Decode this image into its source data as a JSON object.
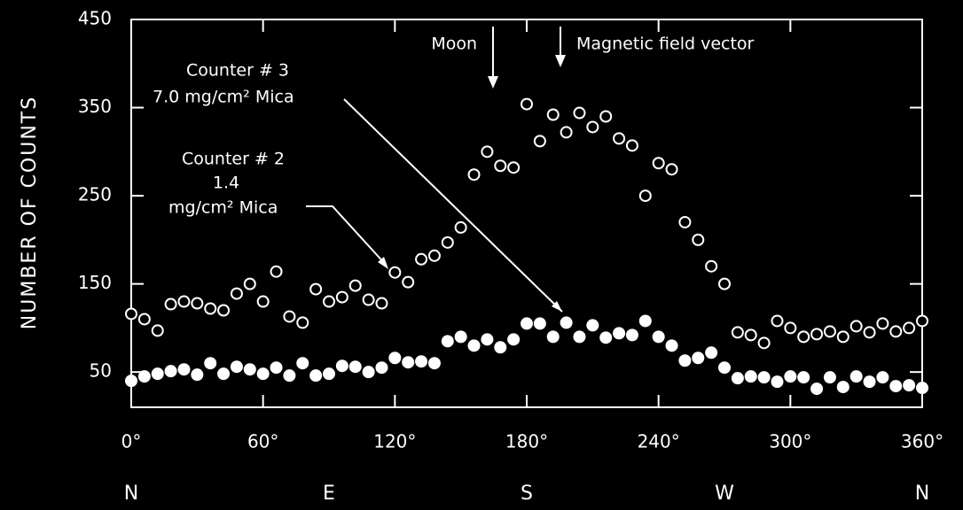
{
  "chart_data": {
    "type": "scatter",
    "y_label": "NUMBER OF COUNTS",
    "x": [
      0,
      6,
      12,
      18,
      24,
      30,
      36,
      42,
      48,
      54,
      60,
      66,
      72,
      78,
      84,
      90,
      96,
      102,
      108,
      114,
      120,
      126,
      132,
      138,
      144,
      150,
      156,
      162,
      168,
      174,
      180,
      186,
      192,
      198,
      204,
      210,
      216,
      222,
      228,
      234,
      240,
      246,
      252,
      258,
      264,
      270,
      276,
      282,
      288,
      294,
      300,
      306,
      312,
      318,
      324,
      330,
      336,
      342,
      348,
      354,
      360
    ],
    "series": [
      {
        "name": "Counter # 2",
        "marker": "open",
        "color": "#ffffff",
        "values": [
          116,
          110,
          97,
          127,
          130,
          128,
          122,
          120,
          139,
          150,
          130,
          164,
          113,
          106,
          144,
          130,
          135,
          148,
          132,
          128,
          163,
          152,
          178,
          182,
          197,
          214,
          274,
          300,
          284,
          282,
          354,
          312,
          342,
          322,
          344,
          328,
          340,
          315,
          307,
          250,
          287,
          280,
          220,
          200,
          170,
          150,
          95,
          92,
          83,
          108,
          100,
          90,
          93,
          96,
          90,
          102,
          95,
          105,
          96,
          100,
          108
        ]
      },
      {
        "name": "Counter # 3",
        "marker": "filled",
        "color": "#ffffff",
        "values": [
          40,
          45,
          48,
          51,
          53,
          47,
          60,
          48,
          56,
          53,
          48,
          55,
          46,
          60,
          46,
          48,
          57,
          56,
          50,
          55,
          66,
          61,
          62,
          60,
          85,
          90,
          80,
          87,
          78,
          87,
          105,
          105,
          90,
          106,
          90,
          103,
          89,
          94,
          92,
          108,
          90,
          80,
          63,
          66,
          72,
          55,
          43,
          45,
          44,
          39,
          45,
          44,
          31,
          44,
          33,
          45,
          39,
          44,
          34,
          35,
          32
        ]
      }
    ],
    "annotations": {
      "counter2_line2": "1.4",
      "counter2_line3": "mg/cm² Mica",
      "counter3_line2": "7.0 mg/cm² Mica",
      "moon": "Moon",
      "field": "Magnetic field vector"
    },
    "xlim": [
      0,
      360
    ],
    "xticks": [
      {
        "value": 0,
        "label": "0°"
      },
      {
        "value": 60,
        "label": "60°"
      },
      {
        "value": 120,
        "label": "120°"
      },
      {
        "value": 180,
        "label": "180°"
      },
      {
        "value": 240,
        "label": "240°"
      },
      {
        "value": 300,
        "label": "300°"
      },
      {
        "value": 360,
        "label": "360°"
      }
    ],
    "compass": [
      {
        "value": 0,
        "label": "N"
      },
      {
        "value": 90,
        "label": "E"
      },
      {
        "value": 180,
        "label": "S"
      },
      {
        "value": 270,
        "label": "W"
      },
      {
        "value": 360,
        "label": "N"
      }
    ],
    "ylim": [
      10,
      450
    ],
    "yticks": [
      50,
      150,
      250,
      350,
      450
    ]
  }
}
